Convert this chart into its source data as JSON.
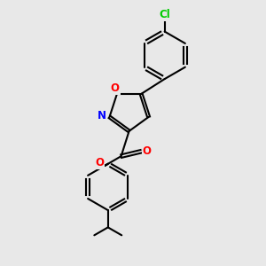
{
  "background_color": "#e8e8e8",
  "bond_color": "#000000",
  "bond_width": 1.5,
  "atom_colors": {
    "O": "#ff0000",
    "N": "#0000ff",
    "Cl": "#00cc00",
    "C": "#000000"
  },
  "font_size": 8.5
}
